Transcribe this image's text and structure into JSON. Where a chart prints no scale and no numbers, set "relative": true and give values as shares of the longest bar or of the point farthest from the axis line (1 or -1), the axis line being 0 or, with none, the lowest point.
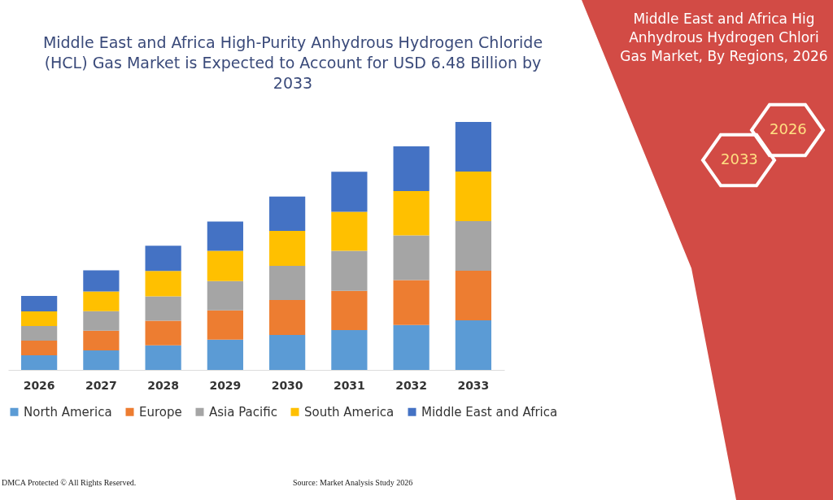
{
  "chart_data": {
    "type": "bar",
    "title": "Middle East and Africa High-Purity Anhydrous Hydrogen Chloride (HCL) Gas Market is Expected to Account for USD 6.48 Billion by 2033",
    "categories": [
      "2026",
      "2027",
      "2028",
      "2029",
      "2030",
      "2031",
      "2032",
      "2033"
    ],
    "stacked": true,
    "relative": true,
    "legend": "bottom",
    "series": [
      {
        "name": "North America",
        "color": "#5b9bd5",
        "values": [
          0.059,
          0.079,
          0.099,
          0.122,
          0.141,
          0.161,
          0.181,
          0.2
        ]
      },
      {
        "name": "Europe",
        "color": "#ed7d31",
        "values": [
          0.059,
          0.079,
          0.099,
          0.118,
          0.141,
          0.158,
          0.181,
          0.2
        ]
      },
      {
        "name": "Asia Pacific",
        "color": "#a5a5a5",
        "values": [
          0.059,
          0.079,
          0.099,
          0.118,
          0.138,
          0.161,
          0.181,
          0.2
        ]
      },
      {
        "name": "South America",
        "color": "#ffc000",
        "values": [
          0.059,
          0.079,
          0.102,
          0.122,
          0.141,
          0.158,
          0.178,
          0.2
        ]
      },
      {
        "name": "Middle East and Africa",
        "color": "#4472c4",
        "values": [
          0.062,
          0.086,
          0.102,
          0.118,
          0.138,
          0.161,
          0.181,
          0.2
        ]
      }
    ],
    "annotations": [
      "Middle East and Africa Hig",
      "Anhydrous Hydrogen Chlori",
      "Gas Market, By Regions, 2026",
      "2026",
      "2033",
      "DMCA Protected © All Rights Reserved.",
      "Source: Market Analysis Study 2026"
    ]
  }
}
